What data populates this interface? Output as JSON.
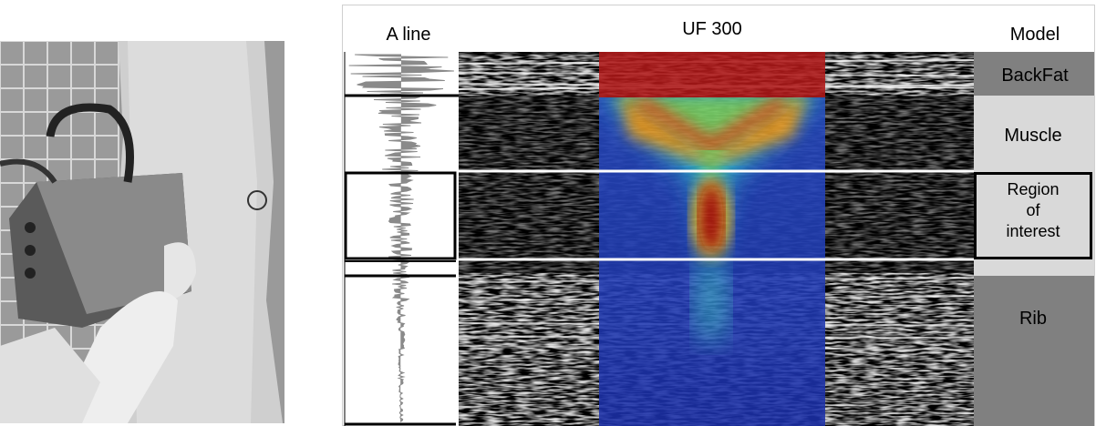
{
  "figure": {
    "aline_title": "A line",
    "image_title": "UF 300",
    "model_title": "Model",
    "layers": [
      "BackFat",
      "Muscle",
      "Region of interest",
      "Rib"
    ]
  }
}
